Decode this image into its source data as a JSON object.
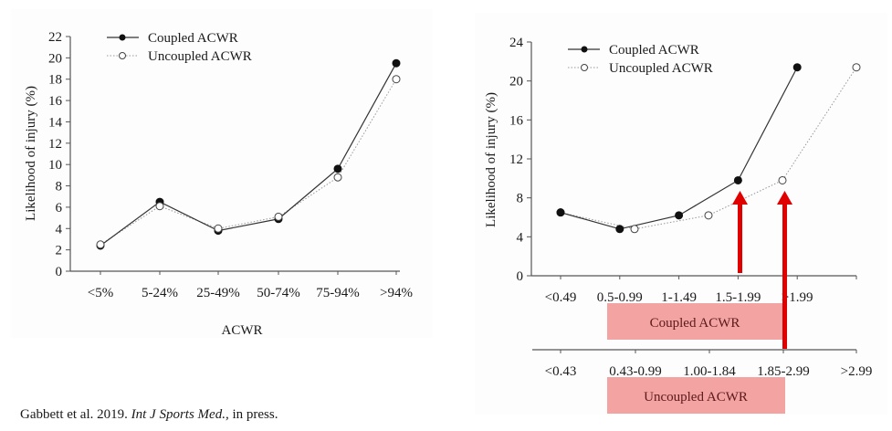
{
  "citation": {
    "authors_year": "Gabbett et al. 2019. ",
    "journal": "Int J Sports Med.,",
    "status": " in press."
  },
  "chart_data": [
    {
      "type": "line",
      "title": "",
      "xlabel": "ACWR",
      "ylabel": "Likelihood of injury (%)",
      "ylim": [
        0,
        22
      ],
      "yticks": [
        0,
        2,
        4,
        6,
        8,
        10,
        12,
        14,
        16,
        18,
        20,
        22
      ],
      "categories": [
        "<5%",
        "5-24%",
        "25-49%",
        "50-74%",
        "75-94%",
        ">94%"
      ],
      "legend_position": "top-left",
      "grid": false,
      "series": [
        {
          "name": "Coupled ACWR",
          "marker": "filled-circle",
          "line": "solid",
          "values": [
            2.4,
            6.5,
            3.8,
            4.9,
            9.6,
            19.5
          ]
        },
        {
          "name": "Uncoupled ACWR",
          "marker": "open-circle",
          "line": "dotted",
          "values": [
            2.5,
            6.1,
            4.0,
            5.1,
            8.8,
            18.0
          ]
        }
      ]
    },
    {
      "type": "line",
      "title": "",
      "xlabel": "",
      "ylabel": "Likelihood of injury (%)",
      "ylim": [
        0,
        24
      ],
      "yticks": [
        0,
        4,
        8,
        12,
        16,
        20,
        24
      ],
      "legend_position": "top-left",
      "grid": false,
      "x_positions": [
        0,
        1,
        2,
        3,
        4,
        5
      ],
      "axes": [
        {
          "name": "Coupled ACWR",
          "categories": [
            "<0.49",
            "0.5-0.99",
            "1-1.49",
            "1.5-1.99",
            ">1.99"
          ],
          "positions": [
            0,
            1,
            2,
            3,
            4
          ]
        },
        {
          "name": "Uncoupled ACWR",
          "categories": [
            "<0.43",
            "0.43-0.99",
            "1.00-1.84",
            "1.85-2.99",
            ">2.99"
          ],
          "positions": [
            0,
            1.25,
            2.5,
            3.75,
            5
          ]
        }
      ],
      "series": [
        {
          "name": "Coupled ACWR",
          "marker": "filled-circle",
          "line": "solid",
          "x": [
            0,
            1,
            2,
            3,
            4
          ],
          "values": [
            6.5,
            4.8,
            6.2,
            9.8,
            21.4
          ]
        },
        {
          "name": "Uncoupled ACWR",
          "marker": "open-circle",
          "line": "dotted",
          "x": [
            0,
            1.25,
            2.5,
            3.75,
            5
          ],
          "values": [
            6.5,
            4.8,
            6.2,
            9.8,
            21.4
          ]
        }
      ],
      "annotations": [
        {
          "type": "arrow",
          "color": "#e00000",
          "at_x": 3,
          "points_to": "Coupled ACWR 1.5-1.99"
        },
        {
          "type": "arrow",
          "color": "#e00000",
          "at_x": 3.75,
          "points_to": "Uncoupled ACWR 1.85-2.99"
        },
        {
          "type": "band",
          "label": "Coupled ACWR",
          "color": "#f4a3a3",
          "from": "0.5-0.99",
          "to": "1.5-1.99"
        },
        {
          "type": "band",
          "label": "Uncoupled ACWR",
          "color": "#f4a3a3",
          "from": "0.43-0.99",
          "to": "1.85-2.99"
        }
      ]
    }
  ]
}
